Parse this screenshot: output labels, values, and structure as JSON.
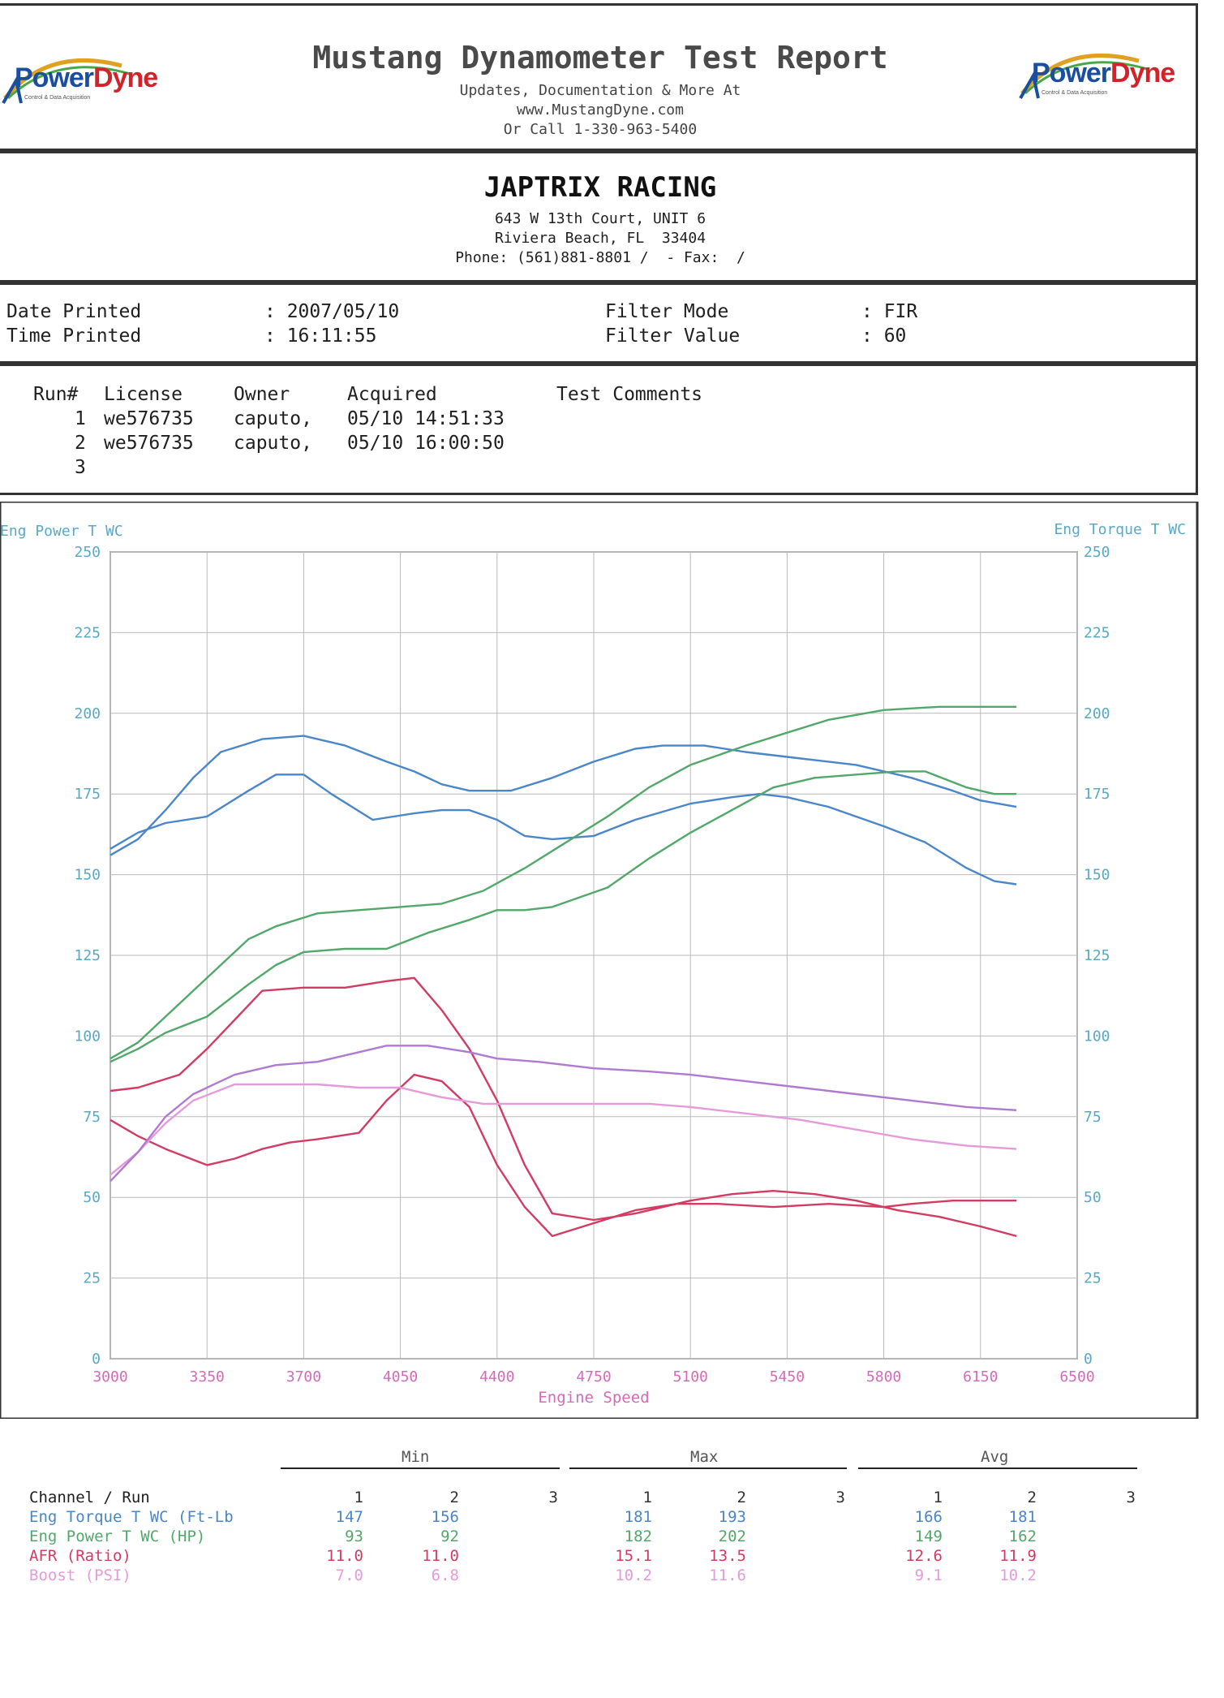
{
  "header": {
    "title": "Mustang Dynamometer Test Report",
    "line1": "Updates, Documentation & More At",
    "line2": "www.MustangDyne.com",
    "line3": "Or Call 1-330-963-5400",
    "logo_left": {
      "word_a": "Power",
      "word_b": "Dyne",
      "tagline": "Control & Data Acquisition"
    },
    "logo_right": {
      "word_a": "Power",
      "word_b": "Dyne",
      "tagline": "Control & Data Acquisition"
    }
  },
  "shop": {
    "name": "JAPTRIX RACING",
    "address1": "643 W 13th Court, UNIT 6",
    "address2": "Riviera Beach, FL  33404",
    "phone": "Phone: (561)881-8801 /  - Fax:  /"
  },
  "info": {
    "date_label": "Date Printed",
    "date_value": ": 2007/05/10",
    "time_label": "Time Printed",
    "time_value": ": 16:11:55",
    "filter_mode_label": "Filter Mode",
    "filter_mode_value": ": FIR",
    "filter_value_label": "Filter Value",
    "filter_value_value": ": 60"
  },
  "runs": {
    "headers": {
      "run": "Run#",
      "license": "License",
      "owner": "Owner",
      "acquired": "Acquired",
      "comments": "Test Comments"
    },
    "rows": [
      {
        "run": "1",
        "license": "we576735",
        "owner": "caputo,",
        "acquired": "05/10 14:51:33"
      },
      {
        "run": "2",
        "license": "we576735",
        "owner": "caputo,",
        "acquired": "05/10 16:00:50"
      },
      {
        "run": "3",
        "license": "",
        "owner": "",
        "acquired": ""
      }
    ]
  },
  "colors": {
    "axis_text": "#5aa9c4",
    "xaxis_text": "#d46bb8",
    "grid": "#b9b9b9",
    "torque": "#4a86c8",
    "power": "#52a86a",
    "afr": "#d23c63",
    "boost": "#b07ad0",
    "boost_run2": "#e59bd9"
  },
  "chart_data": {
    "type": "line",
    "ylabel_left": "Eng Power T WC",
    "ylabel_right": "Eng Torque T WC",
    "xlabel": "Engine Speed",
    "xlim": [
      3000,
      6500
    ],
    "ylim": [
      0,
      250
    ],
    "xticks": [
      3000,
      3350,
      3700,
      4050,
      4400,
      4750,
      5100,
      5450,
      5800,
      6150,
      6500
    ],
    "yticks": [
      0,
      25,
      50,
      75,
      100,
      125,
      150,
      175,
      200,
      225,
      250
    ],
    "series": [
      {
        "key": "torque",
        "run": "1",
        "points": [
          [
            3000,
            158
          ],
          [
            3100,
            163
          ],
          [
            3200,
            166
          ],
          [
            3350,
            168
          ],
          [
            3500,
            176
          ],
          [
            3600,
            181
          ],
          [
            3700,
            181
          ],
          [
            3800,
            175
          ],
          [
            3950,
            167
          ],
          [
            4100,
            169
          ],
          [
            4200,
            170
          ],
          [
            4300,
            170
          ],
          [
            4400,
            167
          ],
          [
            4500,
            162
          ],
          [
            4600,
            161
          ],
          [
            4750,
            162
          ],
          [
            4900,
            167
          ],
          [
            5100,
            172
          ],
          [
            5250,
            174
          ],
          [
            5350,
            175
          ],
          [
            5450,
            174
          ],
          [
            5600,
            171
          ],
          [
            5800,
            165
          ],
          [
            5950,
            160
          ],
          [
            6100,
            152
          ],
          [
            6200,
            148
          ],
          [
            6280,
            147
          ]
        ]
      },
      {
        "key": "torque",
        "run": "2",
        "points": [
          [
            3000,
            156
          ],
          [
            3100,
            161
          ],
          [
            3200,
            170
          ],
          [
            3300,
            180
          ],
          [
            3400,
            188
          ],
          [
            3550,
            192
          ],
          [
            3700,
            193
          ],
          [
            3850,
            190
          ],
          [
            4000,
            185
          ],
          [
            4100,
            182
          ],
          [
            4200,
            178
          ],
          [
            4300,
            176
          ],
          [
            4450,
            176
          ],
          [
            4600,
            180
          ],
          [
            4750,
            185
          ],
          [
            4900,
            189
          ],
          [
            5000,
            190
          ],
          [
            5150,
            190
          ],
          [
            5300,
            188
          ],
          [
            5500,
            186
          ],
          [
            5700,
            184
          ],
          [
            5900,
            180
          ],
          [
            6050,
            176
          ],
          [
            6150,
            173
          ],
          [
            6280,
            171
          ]
        ]
      },
      {
        "key": "power",
        "run": "1",
        "points": [
          [
            3000,
            92
          ],
          [
            3100,
            96
          ],
          [
            3200,
            101
          ],
          [
            3350,
            106
          ],
          [
            3500,
            116
          ],
          [
            3600,
            122
          ],
          [
            3700,
            126
          ],
          [
            3850,
            127
          ],
          [
            4000,
            127
          ],
          [
            4150,
            132
          ],
          [
            4300,
            136
          ],
          [
            4400,
            139
          ],
          [
            4500,
            139
          ],
          [
            4600,
            140
          ],
          [
            4800,
            146
          ],
          [
            4950,
            155
          ],
          [
            5100,
            163
          ],
          [
            5250,
            170
          ],
          [
            5400,
            177
          ],
          [
            5550,
            180
          ],
          [
            5700,
            181
          ],
          [
            5850,
            182
          ],
          [
            5950,
            182
          ],
          [
            6100,
            177
          ],
          [
            6200,
            175
          ],
          [
            6280,
            175
          ]
        ]
      },
      {
        "key": "power",
        "run": "2",
        "points": [
          [
            3000,
            93
          ],
          [
            3100,
            98
          ],
          [
            3200,
            106
          ],
          [
            3350,
            118
          ],
          [
            3500,
            130
          ],
          [
            3600,
            134
          ],
          [
            3750,
            138
          ],
          [
            3900,
            139
          ],
          [
            4050,
            140
          ],
          [
            4200,
            141
          ],
          [
            4350,
            145
          ],
          [
            4500,
            152
          ],
          [
            4650,
            160
          ],
          [
            4800,
            168
          ],
          [
            4950,
            177
          ],
          [
            5100,
            184
          ],
          [
            5300,
            190
          ],
          [
            5450,
            194
          ],
          [
            5600,
            198
          ],
          [
            5800,
            201
          ],
          [
            6000,
            202
          ],
          [
            6150,
            202
          ],
          [
            6280,
            202
          ]
        ]
      },
      {
        "key": "afr",
        "run": "1",
        "points": [
          [
            3000,
            74
          ],
          [
            3100,
            69
          ],
          [
            3200,
            65
          ],
          [
            3350,
            60
          ],
          [
            3450,
            62
          ],
          [
            3550,
            65
          ],
          [
            3650,
            67
          ],
          [
            3750,
            68
          ],
          [
            3900,
            70
          ],
          [
            4000,
            80
          ],
          [
            4100,
            88
          ],
          [
            4200,
            86
          ],
          [
            4300,
            78
          ],
          [
            4400,
            60
          ],
          [
            4500,
            47
          ],
          [
            4600,
            38
          ],
          [
            4750,
            42
          ],
          [
            4900,
            46
          ],
          [
            5050,
            48
          ],
          [
            5200,
            48
          ],
          [
            5400,
            47
          ],
          [
            5600,
            48
          ],
          [
            5800,
            47
          ],
          [
            5900,
            48
          ],
          [
            6050,
            49
          ],
          [
            6150,
            49
          ],
          [
            6280,
            49
          ]
        ]
      },
      {
        "key": "afr",
        "run": "2",
        "points": [
          [
            3000,
            83
          ],
          [
            3100,
            84
          ],
          [
            3250,
            88
          ],
          [
            3350,
            96
          ],
          [
            3450,
            105
          ],
          [
            3550,
            114
          ],
          [
            3700,
            115
          ],
          [
            3850,
            115
          ],
          [
            4000,
            117
          ],
          [
            4100,
            118
          ],
          [
            4200,
            108
          ],
          [
            4300,
            96
          ],
          [
            4400,
            80
          ],
          [
            4500,
            60
          ],
          [
            4600,
            45
          ],
          [
            4750,
            43
          ],
          [
            4900,
            45
          ],
          [
            5100,
            49
          ],
          [
            5250,
            51
          ],
          [
            5400,
            52
          ],
          [
            5550,
            51
          ],
          [
            5700,
            49
          ],
          [
            5850,
            46
          ],
          [
            6000,
            44
          ],
          [
            6150,
            41
          ],
          [
            6280,
            38
          ]
        ]
      },
      {
        "key": "boost",
        "run": "1",
        "points": [
          [
            3000,
            57
          ],
          [
            3100,
            64
          ],
          [
            3200,
            73
          ],
          [
            3300,
            80
          ],
          [
            3450,
            85
          ],
          [
            3600,
            85
          ],
          [
            3750,
            85
          ],
          [
            3900,
            84
          ],
          [
            4050,
            84
          ],
          [
            4200,
            81
          ],
          [
            4350,
            79
          ],
          [
            4550,
            79
          ],
          [
            4750,
            79
          ],
          [
            4950,
            79
          ],
          [
            5100,
            78
          ],
          [
            5300,
            76
          ],
          [
            5500,
            74
          ],
          [
            5700,
            71
          ],
          [
            5900,
            68
          ],
          [
            6100,
            66
          ],
          [
            6280,
            65
          ]
        ]
      },
      {
        "key": "boost",
        "run": "2",
        "points": [
          [
            3000,
            55
          ],
          [
            3100,
            64
          ],
          [
            3200,
            75
          ],
          [
            3300,
            82
          ],
          [
            3450,
            88
          ],
          [
            3600,
            91
          ],
          [
            3750,
            92
          ],
          [
            3900,
            95
          ],
          [
            4000,
            97
          ],
          [
            4150,
            97
          ],
          [
            4300,
            95
          ],
          [
            4400,
            93
          ],
          [
            4550,
            92
          ],
          [
            4750,
            90
          ],
          [
            4950,
            89
          ],
          [
            5100,
            88
          ],
          [
            5300,
            86
          ],
          [
            5500,
            84
          ],
          [
            5700,
            82
          ],
          [
            5900,
            80
          ],
          [
            6100,
            78
          ],
          [
            6280,
            77
          ]
        ]
      }
    ]
  },
  "summary": {
    "groups": [
      "Min",
      "Max",
      "Avg"
    ],
    "channel_header": "Channel / Run",
    "run_labels": [
      "1",
      "2",
      "3"
    ],
    "rows": [
      {
        "key": "torque",
        "name": "Eng Torque T WC (Ft-Lb",
        "min": [
          "147",
          "156",
          ""
        ],
        "max": [
          "181",
          "193",
          ""
        ],
        "avg": [
          "166",
          "181",
          ""
        ]
      },
      {
        "key": "power",
        "name": "Eng Power T WC (HP)",
        "min": [
          "93",
          "92",
          ""
        ],
        "max": [
          "182",
          "202",
          ""
        ],
        "avg": [
          "149",
          "162",
          ""
        ]
      },
      {
        "key": "afr",
        "name": "AFR (Ratio)",
        "min": [
          "11.0",
          "11.0",
          ""
        ],
        "max": [
          "15.1",
          "13.5",
          ""
        ],
        "avg": [
          "12.6",
          "11.9",
          ""
        ]
      },
      {
        "key": "boost",
        "name": "Boost (PSI)",
        "min": [
          "7.0",
          "6.8",
          ""
        ],
        "max": [
          "10.2",
          "11.6",
          ""
        ],
        "avg": [
          "9.1",
          "10.2",
          ""
        ]
      }
    ]
  }
}
